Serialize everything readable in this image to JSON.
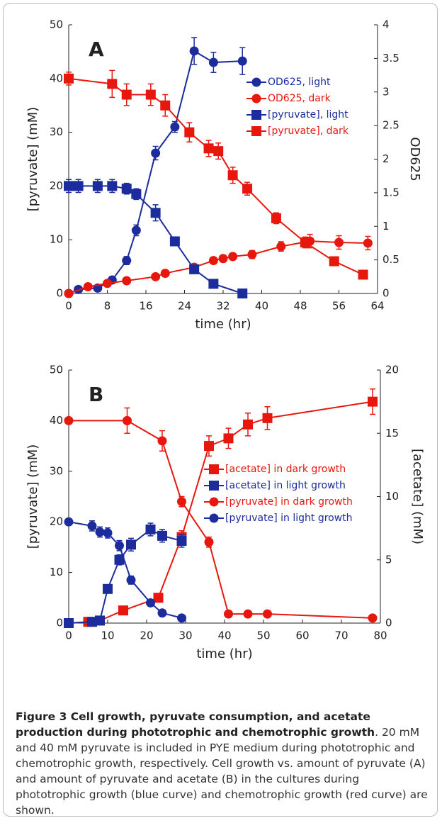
{
  "chart_data": [
    {
      "type": "line",
      "panel": "A",
      "xlabel": "time (hr)",
      "ylabel": "[pyruvate] (mM)",
      "y2label": "OD625",
      "xlim": [
        0,
        64
      ],
      "xticks": [
        0,
        8,
        16,
        24,
        32,
        40,
        48,
        56,
        64
      ],
      "ylim": [
        0,
        50
      ],
      "yticks": [
        0,
        10,
        20,
        30,
        40,
        50
      ],
      "y2lim": [
        0,
        4
      ],
      "y2ticks": [
        0,
        0.5,
        1,
        1.5,
        2,
        2.5,
        3,
        3.5,
        4
      ],
      "series": [
        {
          "name": "OD625, light",
          "color": "#1c2c9c",
          "marker": "circle",
          "axis": "y2",
          "x": [
            0,
            2,
            6,
            9,
            12,
            14,
            18,
            22,
            26,
            30,
            36
          ],
          "values": [
            0,
            0.06,
            0.08,
            0.2,
            0.49,
            0.94,
            2.09,
            2.48,
            3.61,
            3.44,
            3.46
          ],
          "errors": [
            0.03,
            0.04,
            0.04,
            0.05,
            0.06,
            0.08,
            0.1,
            0.08,
            0.2,
            0.15,
            0.2
          ]
        },
        {
          "name": "OD625, dark",
          "color": "#e8170e",
          "marker": "circle",
          "axis": "y2",
          "x": [
            0,
            4,
            8,
            12,
            18,
            20,
            26,
            30,
            32,
            34,
            38,
            44,
            50,
            56,
            62
          ],
          "values": [
            0,
            0.1,
            0.15,
            0.19,
            0.25,
            0.3,
            0.39,
            0.49,
            0.52,
            0.55,
            0.58,
            0.7,
            0.78,
            0.76,
            0.75
          ],
          "errors": [
            0.03,
            0.03,
            0.04,
            0.04,
            0.04,
            0.05,
            0.05,
            0.05,
            0.05,
            0.05,
            0.06,
            0.07,
            0.1,
            0.1,
            0.1
          ]
        },
        {
          "name": "[pyruvate], light",
          "color": "#1c2c9c",
          "marker": "square",
          "axis": "y",
          "x": [
            0,
            2,
            6,
            9,
            12,
            14,
            18,
            22,
            26,
            30,
            36
          ],
          "values": [
            20,
            20,
            20,
            20,
            19.5,
            18.5,
            15,
            9.7,
            4.5,
            1.8,
            0
          ],
          "errors": [
            1.2,
            1.2,
            1.2,
            1.2,
            1,
            1,
            1.5,
            0.8,
            0.6,
            0.5,
            0.4
          ]
        },
        {
          "name": "[pyruvate], dark",
          "color": "#e8170e",
          "marker": "square",
          "axis": "y",
          "x": [
            0,
            9,
            12,
            17,
            20,
            25,
            29,
            31,
            34,
            37,
            43,
            49,
            55,
            61
          ],
          "values": [
            40,
            39,
            37,
            37,
            35,
            30,
            27,
            26.5,
            22,
            19.5,
            14,
            9.5,
            6,
            3.5
          ],
          "errors": [
            1.2,
            2.5,
            2,
            2,
            2,
            1.8,
            1.5,
            1.5,
            1.5,
            1.2,
            1,
            1,
            0.8,
            0.6
          ]
        }
      ]
    },
    {
      "type": "line",
      "panel": "B",
      "xlabel": "time (hr)",
      "ylabel": "[pyruvate] (mM)",
      "y2label": "[acetate] (mM)",
      "xlim": [
        0,
        80
      ],
      "xticks": [
        0,
        10,
        20,
        30,
        40,
        50,
        60,
        70,
        80
      ],
      "ylim": [
        0,
        50
      ],
      "yticks": [
        0,
        10,
        20,
        30,
        40,
        50
      ],
      "y2lim": [
        0,
        20
      ],
      "y2ticks": [
        0,
        5,
        10,
        15,
        20
      ],
      "series": [
        {
          "name": "[acetate] in dark growth",
          "color": "#e8170e",
          "marker": "square",
          "axis": "y2",
          "x": [
            0,
            5,
            8,
            14,
            23,
            29,
            36,
            41,
            46,
            51,
            78
          ],
          "values": [
            0,
            0.1,
            0.2,
            1,
            2,
            6.8,
            14,
            14.6,
            15.7,
            16.2,
            17.5
          ],
          "errors": [
            0.1,
            0.1,
            0.1,
            0.2,
            0.3,
            0.5,
            0.8,
            0.8,
            0.9,
            0.9,
            1
          ]
        },
        {
          "name": "[acetate] in light growth",
          "color": "#1c2c9c",
          "marker": "square",
          "axis": "y2",
          "x": [
            0,
            6,
            8,
            10,
            13,
            16,
            21,
            24,
            29
          ],
          "values": [
            0,
            0.1,
            0.2,
            2.7,
            5,
            6.2,
            7.4,
            6.9,
            6.5
          ],
          "errors": [
            0.1,
            0.1,
            0.1,
            0.3,
            0.4,
            0.5,
            0.5,
            0.5,
            0.5
          ]
        },
        {
          "name": "[pyruvate] in dark growth",
          "color": "#e8170e",
          "marker": "circle",
          "axis": "y",
          "x": [
            0,
            15,
            24,
            29,
            36,
            41,
            46,
            51,
            78
          ],
          "values": [
            40,
            40,
            36,
            24,
            16,
            1.8,
            1.8,
            1.8,
            1
          ],
          "errors": [
            0.5,
            2.5,
            2,
            1,
            1,
            0.5,
            0.5,
            0.5,
            0.4
          ]
        },
        {
          "name": "[pyruvate] in light growth",
          "color": "#1c2c9c",
          "marker": "circle",
          "axis": "y",
          "x": [
            0,
            6,
            8,
            10,
            13,
            16,
            21,
            24,
            29
          ],
          "values": [
            20,
            19.2,
            18,
            17.8,
            15.3,
            8.5,
            4,
            2,
            1
          ],
          "errors": [
            0.5,
            1,
            1,
            1,
            1,
            0.8,
            0.6,
            0.5,
            0.4
          ]
        }
      ]
    }
  ],
  "caption": {
    "title": "Figure 3 Cell growth, pyruvate consumption, and acetate production during phototrophic and chemotrophic growth",
    "text": ". 20 mM and 40 mM pyruvate is included in PYE medium during phototrophic and chemotrophic growth, respectively. Cell growth vs. amount of pyruvate (A) and amount of pyruvate and acetate (B) in the cultures during phototrophic growth (blue curve) and chemotrophic growth (red curve) are shown."
  }
}
